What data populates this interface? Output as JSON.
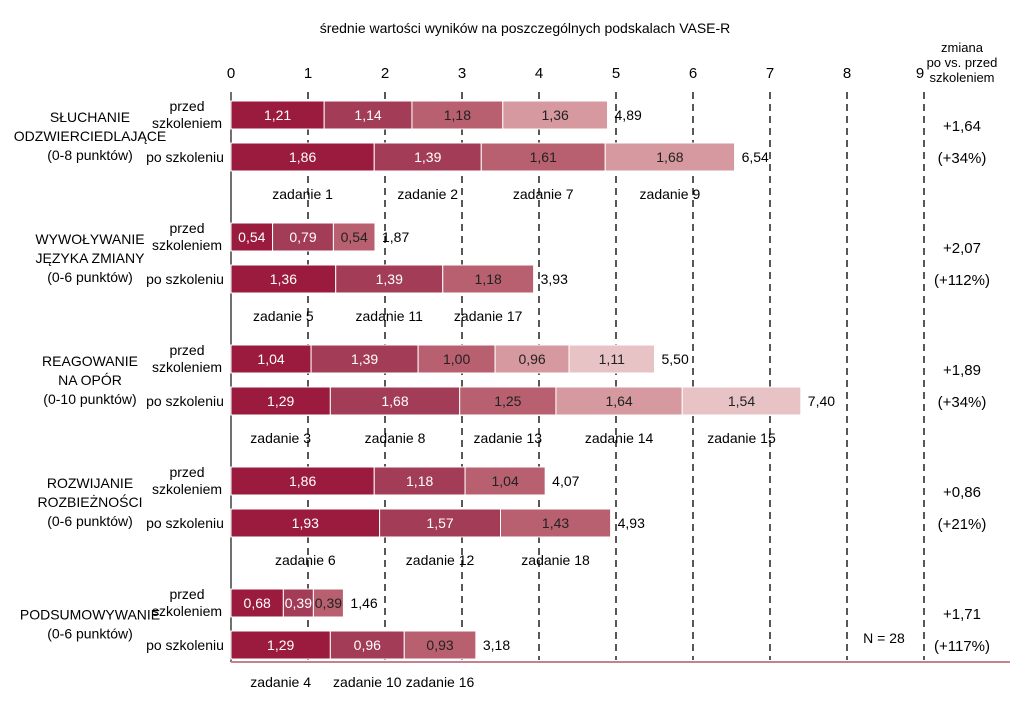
{
  "chart_data": {
    "type": "bar",
    "orientation": "horizontal",
    "stacked": true,
    "title": "średnie wartości wyników na poszczególnych podskalach VASE-R",
    "xlim": [
      0,
      9
    ],
    "x_ticks": [
      "0",
      "1",
      "2",
      "3",
      "4",
      "5",
      "6",
      "7",
      "8",
      "9"
    ],
    "change_header": [
      "zmiana",
      "po vs. przed",
      "szkoleniem"
    ],
    "row_labels": {
      "before": [
        "przed",
        "szkoleniem"
      ],
      "after": "po szkoleniu"
    },
    "note": "N = 28",
    "groups": [
      {
        "label": [
          "SŁUCHANIE",
          "ODZWIERCIEDLAJĄCE",
          "(0-8 punktów)"
        ],
        "tasks": [
          "zadanie 1",
          "zadanie 2",
          "zadanie 7",
          "zadanie 9"
        ],
        "before": {
          "values": [
            1.21,
            1.14,
            1.18,
            1.36
          ],
          "labels": [
            "1,21",
            "1,14",
            "1,18",
            "1,36"
          ],
          "total": "4,89"
        },
        "after": {
          "values": [
            1.86,
            1.39,
            1.61,
            1.68
          ],
          "labels": [
            "1,86",
            "1,39",
            "1,61",
            "1,68"
          ],
          "total": "6,54"
        },
        "change": "+1,64",
        "change_pct": "(+34%)"
      },
      {
        "label": [
          "WYWOŁYWANIE",
          "JĘZYKA ZMIANY",
          "(0-6 punktów)"
        ],
        "tasks": [
          "zadanie 5",
          "zadanie 11",
          "zadanie 17"
        ],
        "before": {
          "values": [
            0.54,
            0.79,
            0.54
          ],
          "labels": [
            "0,54",
            "0,79",
            "0,54"
          ],
          "total": "1,87"
        },
        "after": {
          "values": [
            1.36,
            1.39,
            1.18
          ],
          "labels": [
            "1,36",
            "1,39",
            "1,18"
          ],
          "total": "3,93"
        },
        "change": "+2,07",
        "change_pct": "(+112%)"
      },
      {
        "label": [
          "REAGOWANIE",
          "NA OPÓR",
          "(0-10 punktów)"
        ],
        "tasks": [
          "zadanie 3",
          "zadanie 8",
          "zadanie 13",
          "zadanie 14",
          "zadanie 15"
        ],
        "before": {
          "values": [
            1.04,
            1.39,
            1.0,
            0.96,
            1.11
          ],
          "labels": [
            "1,04",
            "1,39",
            "1,00",
            "0,96",
            "1,11"
          ],
          "total": "5,50"
        },
        "after": {
          "values": [
            1.29,
            1.68,
            1.25,
            1.64,
            1.54
          ],
          "labels": [
            "1,29",
            "1,68",
            "1,25",
            "1,64",
            "1,54"
          ],
          "total": "7,40"
        },
        "change": "+1,89",
        "change_pct": "(+34%)"
      },
      {
        "label": [
          "ROZWIJANIE",
          "ROZBIEŻNOŚCI",
          "(0-6 punktów)"
        ],
        "tasks": [
          "zadanie 6",
          "zadanie 12",
          "zadanie 18"
        ],
        "before": {
          "values": [
            1.86,
            1.18,
            1.04
          ],
          "labels": [
            "1,86",
            "1,18",
            "1,04"
          ],
          "total": "4,07"
        },
        "after": {
          "values": [
            1.93,
            1.57,
            1.43
          ],
          "labels": [
            "1,93",
            "1,57",
            "1,43"
          ],
          "total": "4,93"
        },
        "change": "+0,86",
        "change_pct": "(+21%)"
      },
      {
        "label": [
          "PODSUMOWYWANIE",
          "(0-6 punktów)"
        ],
        "tasks": [
          "zadanie 4",
          "zadanie 10",
          "zadanie 16"
        ],
        "before": {
          "values": [
            0.68,
            0.39,
            0.39
          ],
          "labels": [
            "0,68",
            "0,39",
            "0,39"
          ],
          "total": "1,46"
        },
        "after": {
          "values": [
            1.29,
            0.96,
            0.93
          ],
          "labels": [
            "1,29",
            "0,96",
            "0,93"
          ],
          "total": "3,18"
        },
        "change": "+1,71",
        "change_pct": "(+117%)"
      }
    ],
    "colors": [
      "#9b1b3e",
      "#a33c57",
      "#b8606f",
      "#d6999f",
      "#e8c3c6"
    ]
  }
}
